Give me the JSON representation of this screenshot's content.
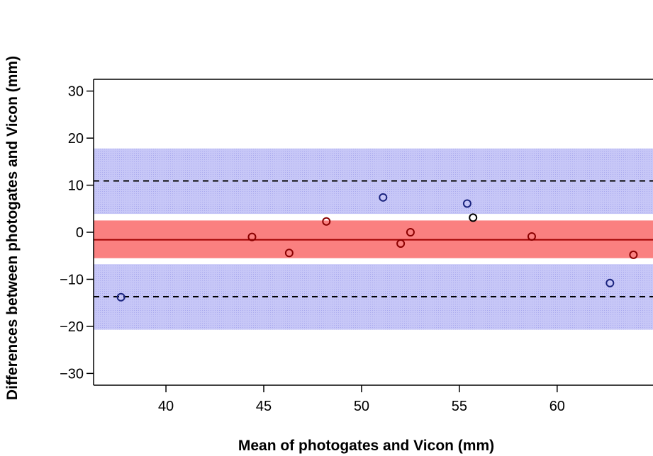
{
  "chart_data": {
    "type": "scatter",
    "title": "",
    "xlabel": "Mean of photogates and Vicon (mm)",
    "ylabel": "Differences between photogates and Vicon (mm)",
    "xlim": [
      36.3,
      64.9
    ],
    "ylim": [
      -32.5,
      32.5
    ],
    "xticks": [
      40,
      45,
      50,
      55,
      60
    ],
    "yticks": [
      -30,
      -20,
      -10,
      0,
      10,
      20,
      30
    ],
    "ytick_labels": [
      "−30",
      "−20",
      "−10",
      "0",
      "10",
      "20",
      "30"
    ],
    "mean_line": -1.6,
    "limits_of_agreement": [
      -13.7,
      10.9
    ],
    "bands": [
      {
        "name": "upper-limit-ci",
        "from": 3.9,
        "to": 17.8,
        "color": "#b9b9f4"
      },
      {
        "name": "mean-ci",
        "from": -5.5,
        "to": 2.5,
        "color": "#fa8080"
      },
      {
        "name": "lower-limit-ci",
        "from": -20.7,
        "to": -6.8,
        "color": "#b9b9f4"
      }
    ],
    "points": [
      {
        "x": 37.7,
        "y": -13.8,
        "color": "#1a237e"
      },
      {
        "x": 44.4,
        "y": -1.0,
        "color": "#8b0000"
      },
      {
        "x": 46.3,
        "y": -4.4,
        "color": "#8b0000"
      },
      {
        "x": 48.2,
        "y": 2.3,
        "color": "#8b0000"
      },
      {
        "x": 51.1,
        "y": 7.4,
        "color": "#1a237e"
      },
      {
        "x": 52.0,
        "y": -2.4,
        "color": "#8b0000"
      },
      {
        "x": 52.5,
        "y": 0.0,
        "color": "#8b0000"
      },
      {
        "x": 55.4,
        "y": 6.1,
        "color": "#1a237e"
      },
      {
        "x": 55.7,
        "y": 3.1,
        "color": "#000000"
      },
      {
        "x": 58.7,
        "y": -0.9,
        "color": "#8b0000"
      },
      {
        "x": 62.7,
        "y": -10.8,
        "color": "#1a237e"
      },
      {
        "x": 63.9,
        "y": -4.8,
        "color": "#8b0000"
      }
    ],
    "colors": {
      "mean_line": "#a00000",
      "limit_line": "#000000",
      "axis": "#000000"
    }
  }
}
